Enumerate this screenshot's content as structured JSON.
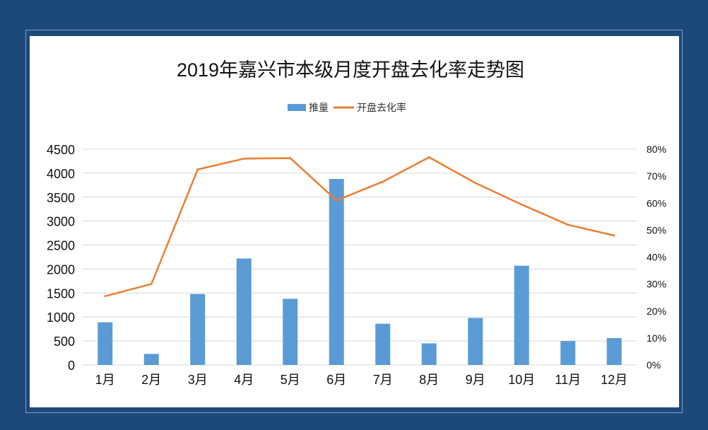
{
  "chart_data": {
    "type": "bar",
    "title": "2019年嘉兴市本级月度开盘去化率走势图",
    "categories": [
      "1月",
      "2月",
      "3月",
      "4月",
      "5月",
      "6月",
      "7月",
      "8月",
      "9月",
      "10月",
      "11月",
      "12月"
    ],
    "series": [
      {
        "name": "推量",
        "type": "bar",
        "axis": "left",
        "color": "#5b9bd5",
        "values": [
          890,
          230,
          1480,
          2220,
          1380,
          3880,
          860,
          450,
          980,
          2070,
          500,
          560
        ]
      },
      {
        "name": "开盘去化率",
        "type": "line",
        "axis": "right",
        "color": "#ed7d31",
        "values": [
          0.255,
          0.3,
          0.725,
          0.765,
          0.767,
          0.61,
          0.68,
          0.77,
          0.675,
          0.595,
          0.52,
          0.48
        ]
      }
    ],
    "y_left": {
      "range": [
        0,
        4500
      ],
      "ticks": [
        "0",
        "500",
        "1000",
        "1500",
        "2000",
        "2500",
        "3000",
        "3500",
        "4000",
        "4500"
      ]
    },
    "y_right": {
      "range": [
        0,
        0.8
      ],
      "ticks": [
        "0%",
        "10%",
        "20%",
        "30%",
        "40%",
        "50%",
        "60%",
        "70%",
        "80%"
      ]
    },
    "grid": true,
    "legend_position": "top-center",
    "colors": {
      "background": "#1c4979",
      "panel": "#ffffff",
      "grid": "#d9d9d9"
    }
  }
}
